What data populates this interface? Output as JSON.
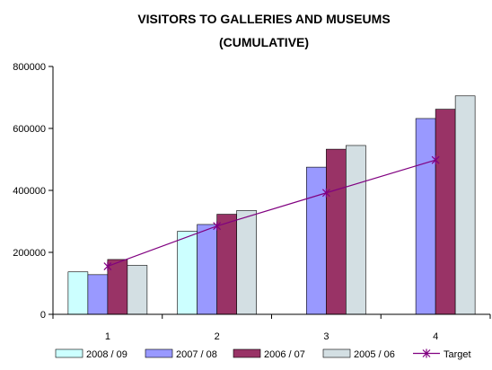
{
  "chart_data": {
    "type": "bar",
    "title": "VISITORS TO GALLERIES AND MUSEUMS",
    "subtitle": "(CUMULATIVE)",
    "xlabel": "",
    "ylabel": "",
    "categories": [
      "1",
      "2",
      "3",
      "4"
    ],
    "ylim": [
      0,
      800000
    ],
    "yticks": [
      "0",
      "200000",
      "400000",
      "600000",
      "800000"
    ],
    "grid": false,
    "legend_position": "bottom",
    "series": [
      {
        "name": "2008 / 09",
        "color": "#ccffff",
        "values": [
          137000,
          268000,
          null,
          null
        ]
      },
      {
        "name": "2007 / 08",
        "color": "#9999ff",
        "values": [
          128000,
          290000,
          475000,
          632000
        ]
      },
      {
        "name": "2006 / 07",
        "color": "#993366",
        "values": [
          177000,
          323000,
          533000,
          662000
        ]
      },
      {
        "name": "2005 / 06",
        "color": "#d3dfe3",
        "values": [
          158000,
          335000,
          545000,
          705000
        ]
      }
    ],
    "line_series": [
      {
        "name": "Target",
        "color": "#800080",
        "marker": "star",
        "values": [
          155000,
          285000,
          392000,
          498000
        ]
      }
    ]
  }
}
